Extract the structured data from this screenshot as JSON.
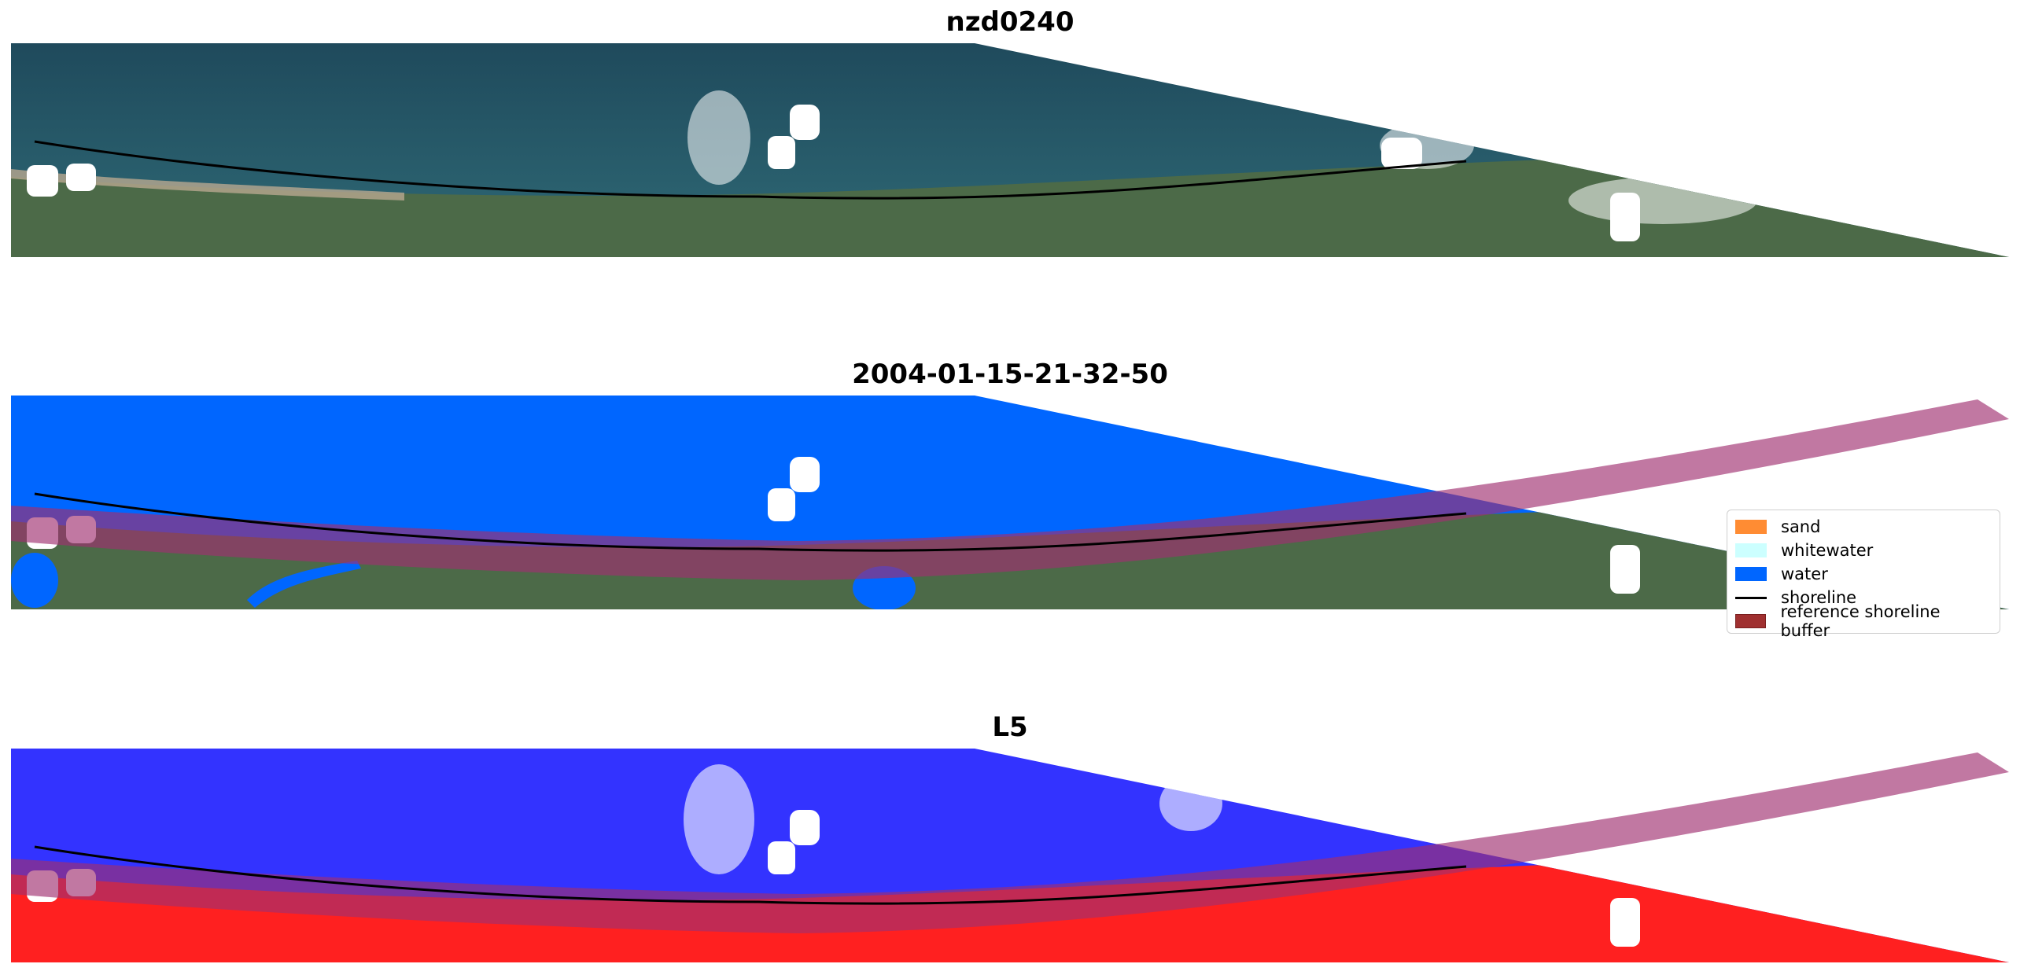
{
  "panels": [
    {
      "title": "nzd0240",
      "kind": "rgb"
    },
    {
      "title": "2004-01-15-21-32-50",
      "kind": "classified"
    },
    {
      "title": "L5",
      "kind": "index"
    }
  ],
  "legend": {
    "placement": "right of middle panel",
    "items": [
      {
        "label": "sand",
        "color": "#ff8c33",
        "type": "patch"
      },
      {
        "label": "whitewater",
        "color": "#ccffff",
        "type": "patch"
      },
      {
        "label": "water",
        "color": "#0066ff",
        "type": "patch"
      },
      {
        "label": "shoreline",
        "color": "#000000",
        "type": "line"
      },
      {
        "label": "reference shoreline buffer",
        "color": "#a03030",
        "type": "patch"
      }
    ]
  },
  "colors": {
    "ocean": "#2a5a6a",
    "land": "#4c6a48",
    "water_class": "#0066ff",
    "buffer": "#a03070",
    "index_water": "#3333ff",
    "index_land": "#ff2020"
  }
}
